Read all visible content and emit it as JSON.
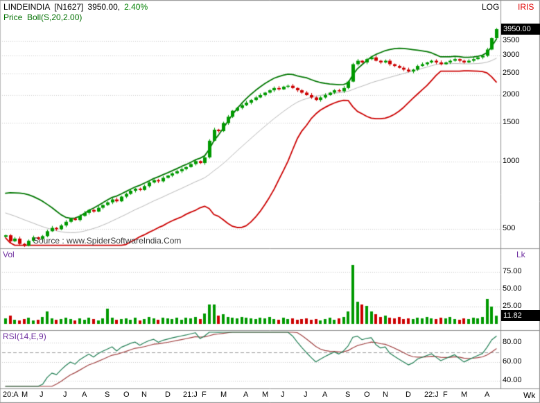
{
  "header": {
    "symbol": "LINDEINDIA",
    "series_code": "[N1627]",
    "last_price": "3950.00,",
    "change_pct": "2.40%",
    "indicator_label": "Price  Boll(S,20,2.00)",
    "scale_label": "LOG",
    "brand": "IRIS"
  },
  "price_pane": {
    "axis_ticks": [
      "3500",
      "3000",
      "2500",
      "2000",
      "1500",
      "1000",
      "500"
    ],
    "tick_values": [
      3500,
      3000,
      2500,
      2000,
      1500,
      1000,
      500
    ],
    "last_price_marker": "3950.00",
    "watermark": "Source : www.SpiderSoftwareIndia.Com"
  },
  "volume_pane": {
    "label": "Vol",
    "unit": "Lk",
    "axis_ticks": [
      "75.00",
      "50.00",
      "25.00"
    ],
    "tick_values": [
      75,
      50,
      25
    ],
    "marker": "11.82"
  },
  "rsi_pane": {
    "label": "RSI(14,E,9)",
    "axis_ticks": [
      "80.00",
      "60.00",
      "40.00"
    ],
    "tick_values": [
      80,
      60,
      40
    ],
    "overbought_dashed_level": 70
  },
  "x_axis": {
    "right_label": "Wk",
    "month_ticks": [
      {
        "label": "20:A",
        "week": 0
      },
      {
        "label": "M",
        "week": 4
      },
      {
        "label": "J",
        "week": 8
      },
      {
        "label": "J",
        "week": 13
      },
      {
        "label": "A",
        "week": 17
      },
      {
        "label": "S",
        "week": 22
      },
      {
        "label": "O",
        "week": 26
      },
      {
        "label": "N",
        "week": 30
      },
      {
        "label": "D",
        "week": 35
      },
      {
        "label": "21:J",
        "week": 39
      },
      {
        "label": "F",
        "week": 43
      },
      {
        "label": "M",
        "week": 47
      },
      {
        "label": "A",
        "week": 52
      },
      {
        "label": "M",
        "week": 56
      },
      {
        "label": "J",
        "week": 60
      },
      {
        "label": "J",
        "week": 65
      },
      {
        "label": "A",
        "week": 69
      },
      {
        "label": "S",
        "week": 74
      },
      {
        "label": "O",
        "week": 78
      },
      {
        "label": "N",
        "week": 82
      },
      {
        "label": "D",
        "week": 87
      },
      {
        "label": "22:J",
        "week": 91
      },
      {
        "label": "F",
        "week": 95
      },
      {
        "label": "M",
        "week": 99
      },
      {
        "label": "A",
        "week": 104
      }
    ]
  },
  "colors": {
    "up": "#009900",
    "down": "#cc0000",
    "band_upper": "#007700",
    "band_lower": "#cc0000",
    "band_mid": "#b8b8b8",
    "grid": "#c9c9c9",
    "pane_border": "#8e8e8e",
    "pane_label": "#7030a0",
    "rsi_line": "#1e7d52",
    "rsi_signal": "#a04040",
    "marker_bg": "#000000",
    "marker_fg": "#ffffff",
    "change_green": "#008000",
    "brand_red": "#e00000"
  },
  "chart_data": {
    "type": "candlestick",
    "timeframe": "weekly",
    "symbol": "LINDEINDIA",
    "log_scale": true,
    "title": "LINDEINDIA [N1627] 3950.00, 2.40%",
    "price_axis_range": [
      414,
      4100
    ],
    "volume_axis_range": [
      0,
      95
    ],
    "rsi_axis_range": [
      33,
      92
    ],
    "last": {
      "price": 3950.0,
      "change_pct": 2.4,
      "volume_lakh": 11.82
    },
    "indicators": {
      "bollinger": {
        "ma_type": "SMA",
        "period": 20,
        "stddev": 2.0
      },
      "rsi": {
        "period": 14,
        "smoothing": "E",
        "signal_period": 9
      }
    },
    "prehistory_closes": [
      620,
      628,
      635,
      640,
      632,
      638,
      645,
      650,
      642,
      648,
      640,
      632,
      620,
      600,
      575,
      545,
      520,
      495,
      475,
      460
    ],
    "weekly_closes": [
      468,
      440,
      452,
      428,
      420,
      442,
      458,
      450,
      464,
      488,
      505,
      498,
      518,
      538,
      556,
      548,
      572,
      590,
      608,
      598,
      622,
      640,
      658,
      678,
      665,
      698,
      718,
      742,
      758,
      748,
      778,
      808,
      828,
      818,
      848,
      868,
      888,
      908,
      928,
      948,
      978,
      1008,
      988,
      1048,
      1245,
      1395,
      1375,
      1495,
      1595,
      1698,
      1748,
      1798,
      1845,
      1898,
      1948,
      1998,
      2048,
      2098,
      2148,
      2118,
      2178,
      2198,
      2148,
      2098,
      2048,
      1998,
      1948,
      1898,
      1948,
      1998,
      2048,
      2098,
      2078,
      2148,
      2295,
      2748,
      2848,
      2798,
      2898,
      2948,
      2848,
      2798,
      2848,
      2748,
      2698,
      2648,
      2598,
      2548,
      2598,
      2698,
      2748,
      2798,
      2848,
      2798,
      2748,
      2798,
      2848,
      2898,
      2848,
      2798,
      2848,
      2898,
      2948,
      2998,
      3198,
      3598,
      3950
    ],
    "weekly_volumes_lakh": [
      8,
      12,
      6,
      5,
      7,
      9,
      5,
      6,
      10,
      18,
      8,
      6,
      7,
      9,
      7,
      5,
      8,
      6,
      9,
      7,
      5,
      8,
      22,
      9,
      6,
      7,
      8,
      6,
      9,
      5,
      7,
      10,
      8,
      6,
      9,
      8,
      7,
      9,
      6,
      9,
      8,
      10,
      7,
      15,
      28,
      28,
      12,
      14,
      10,
      9,
      8,
      10,
      9,
      8,
      7,
      9,
      8,
      10,
      7,
      6,
      9,
      7,
      8,
      6,
      7,
      8,
      6,
      7,
      5,
      7,
      9,
      6,
      8,
      10,
      18,
      85,
      32,
      28,
      26,
      18,
      14,
      10,
      12,
      9,
      8,
      10,
      7,
      8,
      7,
      9,
      8,
      10,
      8,
      7,
      9,
      8,
      10,
      7,
      6,
      8,
      7,
      9,
      8,
      10,
      36,
      25,
      11.82
    ]
  }
}
